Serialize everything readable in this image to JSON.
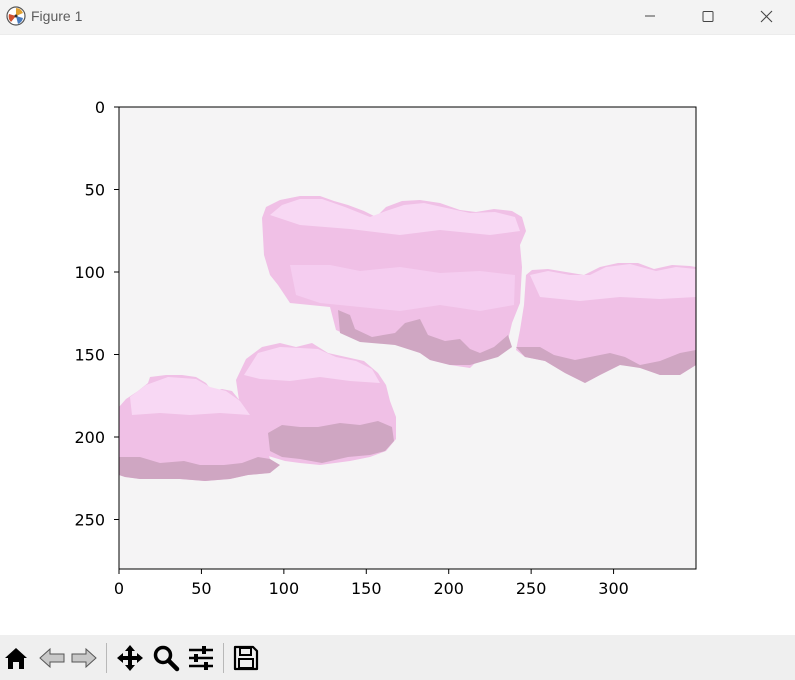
{
  "window": {
    "title": "Figure 1",
    "icons": {
      "app": "matplotlib-logo-icon",
      "minimize": "minimize-icon",
      "maximize": "maximize-icon",
      "close": "close-icon"
    }
  },
  "toolbar": {
    "buttons": [
      {
        "name": "home-button",
        "icon": "home-icon"
      },
      {
        "name": "back-button",
        "icon": "back-arrow-icon"
      },
      {
        "name": "forward-button",
        "icon": "forward-arrow-icon"
      },
      {
        "name": "pan-button",
        "icon": "move-icon"
      },
      {
        "name": "zoom-button",
        "icon": "magnifier-icon"
      },
      {
        "name": "configure-subplots-button",
        "icon": "sliders-icon"
      },
      {
        "name": "save-button",
        "icon": "floppy-disk-icon"
      }
    ]
  },
  "chart_data": {
    "type": "image",
    "image_content": "pixel-art pink clouds on light grey background",
    "xlim": [
      0,
      350
    ],
    "ylim": [
      280,
      0
    ],
    "xticks": [
      0,
      50,
      100,
      150,
      200,
      250,
      300
    ],
    "yticks": [
      0,
      50,
      100,
      150,
      200,
      250
    ],
    "xlabel": "",
    "ylabel": "",
    "title": "",
    "grid": false,
    "colors": {
      "background": "#f5f4f5",
      "cloud_light": "#f5cdf0",
      "cloud_mid": "#f0c0e6",
      "cloud_highlight": "#f8d8f4",
      "cloud_shadow": "#cfa6c2"
    }
  }
}
